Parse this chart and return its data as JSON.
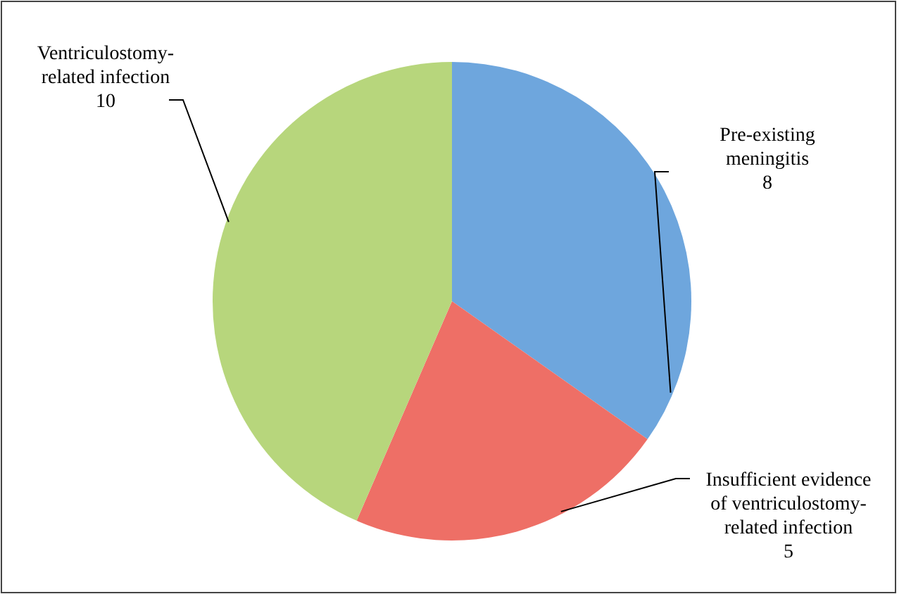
{
  "chart_data": {
    "type": "pie",
    "categories": [
      "Pre-existing meningitis",
      "Insufficient evidence of ventriculostomy-related infection",
      "Ventriculostomy-related infection"
    ],
    "values": [
      8,
      5,
      10
    ],
    "colors": [
      "#6ea6dd",
      "#ee6f66",
      "#b7d67c"
    ],
    "data_labels": true
  }
}
